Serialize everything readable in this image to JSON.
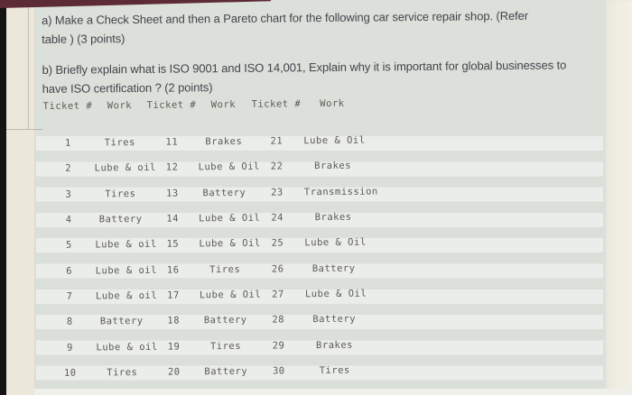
{
  "document": {
    "questions": [
      {
        "id": "a",
        "lines": [
          "a) Make a Check Sheet and then a Pareto chart for the following car service repair shop. (Refer",
          "table ) (3 points)"
        ]
      },
      {
        "id": "b",
        "lines": [
          "b) Briefly explain what is ISO 9001 and ISO 14,001, Explain why it is important for global businesses to",
          "have ISO certification ? (2 points)"
        ]
      }
    ],
    "table": {
      "headers": [
        "Ticket #",
        "Work",
        "Ticket #",
        "Work",
        "Ticket #",
        "Work"
      ],
      "rows": [
        [
          "1",
          "Tires",
          "11",
          "Brakes",
          "21",
          "Lube & Oil"
        ],
        [
          "2",
          "Lube & oil",
          "12",
          "Lube & Oil",
          "22",
          "Brakes"
        ],
        [
          "3",
          "Tires",
          "13",
          "Battery",
          "23",
          "Transmission"
        ],
        [
          "4",
          "Battery",
          "14",
          "Lube & Oil",
          "24",
          "Brakes"
        ],
        [
          "5",
          "Lube & oil",
          "15",
          "Lube & Oil",
          "25",
          "Lube & Oil"
        ],
        [
          "6",
          "Lube & oil",
          "16",
          "Tires",
          "26",
          "Battery"
        ],
        [
          "7",
          "Lube & oil",
          "17",
          "Lube & Oil",
          "27",
          "Lube & Oil"
        ],
        [
          "8",
          "Battery",
          "18",
          "Battery",
          "28",
          "Battery"
        ],
        [
          "9",
          "Lube & oil",
          "19",
          "Tires",
          "29",
          "Brakes"
        ],
        [
          "10",
          "Tires",
          "20",
          "Battery",
          "30",
          "Tires"
        ]
      ]
    }
  },
  "colors": {
    "page_background": "#dce0da",
    "paper_margin": "#ebe7da",
    "desk_edge_maroon": "#5d2b36",
    "photo_edge_dark": "#161412",
    "question_text": "#43444b",
    "table_text": "#5c5b54"
  }
}
